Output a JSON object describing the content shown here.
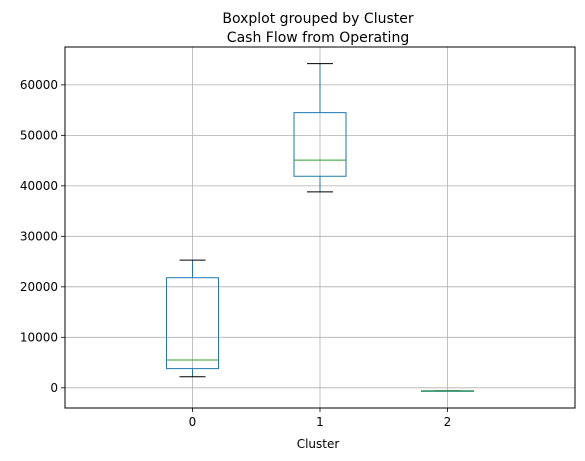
{
  "chart_data": {
    "type": "box",
    "suptitle": "Boxplot grouped by Cluster",
    "title": "Cash Flow from Operating",
    "xlabel": "Cluster",
    "ylabel": "",
    "categories": [
      "0",
      "1",
      "2"
    ],
    "ylim": [
      -4000,
      67500
    ],
    "yticks": [
      0,
      10000,
      20000,
      30000,
      40000,
      50000,
      60000
    ],
    "grid": true,
    "boxes": [
      {
        "category": "0",
        "whisker_low": 2200,
        "q1": 3800,
        "median": 5500,
        "q3": 21800,
        "whisker_high": 25300
      },
      {
        "category": "1",
        "whisker_low": 38800,
        "q1": 41900,
        "median": 45100,
        "q3": 54500,
        "whisker_high": 64200
      },
      {
        "category": "2",
        "whisker_low": -600,
        "q1": -600,
        "median": -600,
        "q3": -600,
        "whisker_high": -600
      }
    ],
    "colors": {
      "box": "#1f77b4",
      "median": "#2ca02c",
      "whisker_cap": "#000000",
      "grid": "#b0b0b0"
    }
  }
}
